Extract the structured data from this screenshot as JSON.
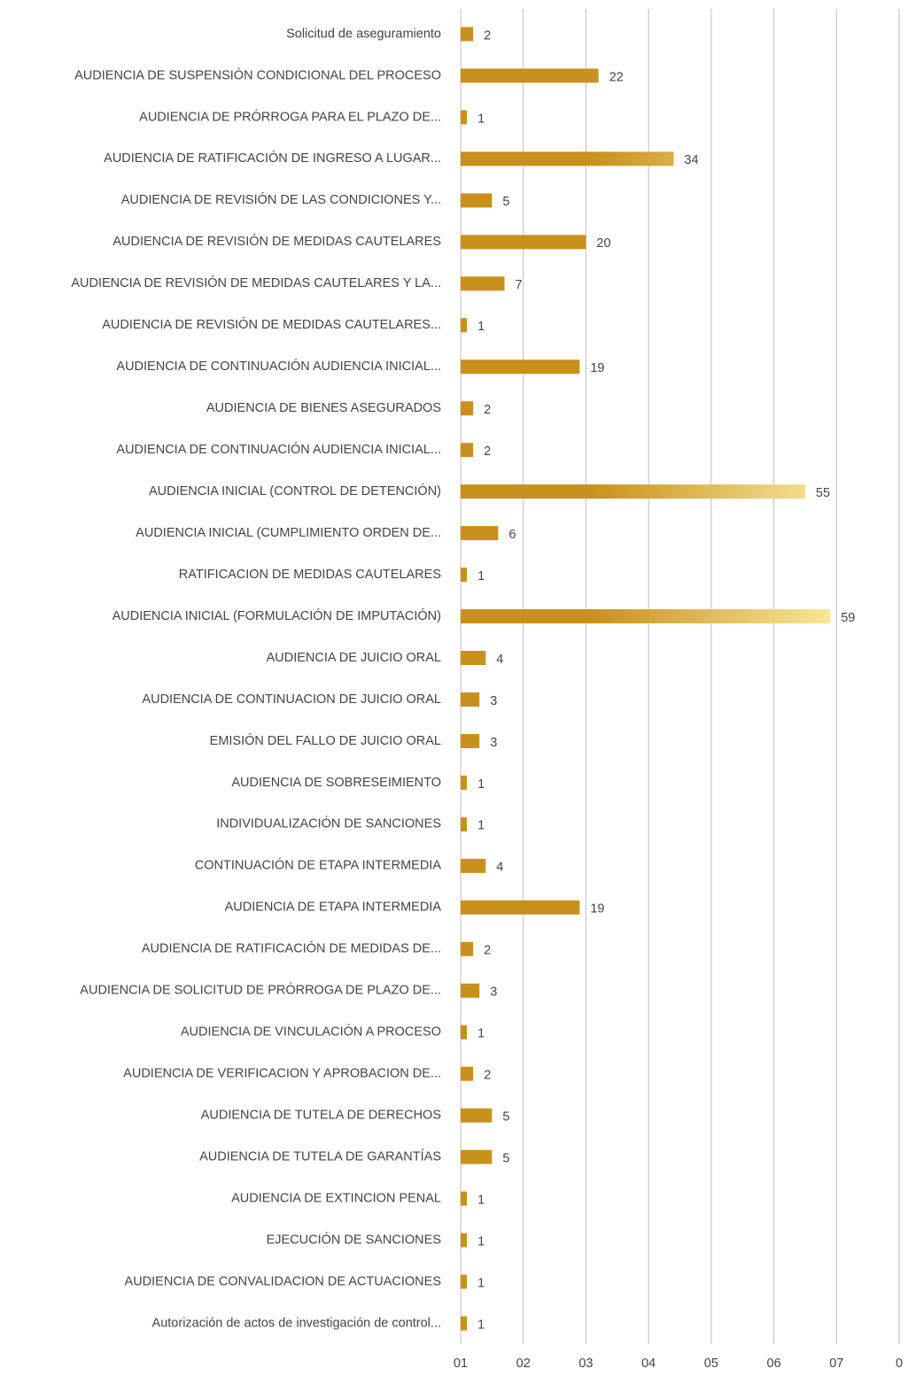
{
  "chart_data": {
    "type": "barh",
    "categories": [
      "Solicitud de aseguramiento",
      "AUDIENCIA DE SUSPENSIÓN CONDICIONAL DEL PROCESO",
      "AUDIENCIA DE PRÓRROGA PARA EL PLAZO DE...",
      "AUDIENCIA DE RATIFICACIÓN  DE INGRESO A LUGAR...",
      "AUDIENCIA DE REVISIÓN DE LAS CONDICIONES Y...",
      "AUDIENCIA DE REVISIÓN DE MEDIDAS CAUTELARES",
      "AUDIENCIA DE REVISIÓN DE MEDIDAS CAUTELARES Y LA...",
      "AUDIENCIA DE REVISIÓN DE MEDIDAS CAUTELARES...",
      "AUDIENCIA DE CONTINUACIÓN AUDIENCIA INICIAL...",
      "AUDIENCIA DE BIENES ASEGURADOS",
      "AUDIENCIA DE CONTINUACIÓN AUDIENCIA INICIAL...",
      "AUDIENCIA INICIAL (CONTROL DE DETENCIÓN)",
      "AUDIENCIA INICIAL (CUMPLIMIENTO ORDEN DE...",
      "RATIFICACION DE MEDIDAS CAUTELARES",
      "AUDIENCIA INICIAL (FORMULACIÓN DE IMPUTACIÓN)",
      "AUDIENCIA DE JUICIO ORAL",
      "AUDIENCIA DE CONTINUACION DE JUICIO ORAL",
      "EMISIÓN DEL FALLO DE JUICIO ORAL",
      "AUDIENCIA DE SOBRESEIMIENTO",
      "INDIVIDUALIZACIÓN DE SANCIONES",
      "CONTINUACIÓN DE ETAPA INTERMEDIA",
      "AUDIENCIA DE ETAPA INTERMEDIA",
      "AUDIENCIA DE RATIFICACIÓN DE MEDIDAS DE...",
      "AUDIENCIA DE SOLICITUD DE PRÓRROGA DE PLAZO DE...",
      "AUDIENCIA DE VINCULACIÓN A PROCESO",
      "AUDIENCIA DE VERIFICACION Y APROBACION DE...",
      "AUDIENCIA DE TUTELA DE DERECHOS",
      "AUDIENCIA DE TUTELA DE GARANTÍAS",
      "AUDIENCIA DE EXTINCION PENAL",
      "EJECUCIÓN DE SANCIONES",
      "AUDIENCIA DE CONVALIDACION DE ACTUACIONES",
      "Autorización de actos de investigación de control..."
    ],
    "values": [
      2,
      22,
      1,
      34,
      5,
      20,
      7,
      1,
      19,
      2,
      2,
      55,
      6,
      1,
      59,
      4,
      3,
      3,
      1,
      1,
      4,
      19,
      2,
      3,
      1,
      2,
      5,
      5,
      1,
      1,
      1,
      1
    ],
    "xlim": [
      0,
      70
    ],
    "xticks": [
      {
        "value": 0,
        "label": "01"
      },
      {
        "value": 10,
        "label": "02"
      },
      {
        "value": 20,
        "label": "03"
      },
      {
        "value": 30,
        "label": "04"
      },
      {
        "value": 40,
        "label": "05"
      },
      {
        "value": 50,
        "label": "06"
      },
      {
        "value": 60,
        "label": "07"
      },
      {
        "value": 70,
        "label": "0"
      }
    ],
    "grid": true,
    "color": [
      "#c8911c",
      "#f8e79a"
    ]
  }
}
